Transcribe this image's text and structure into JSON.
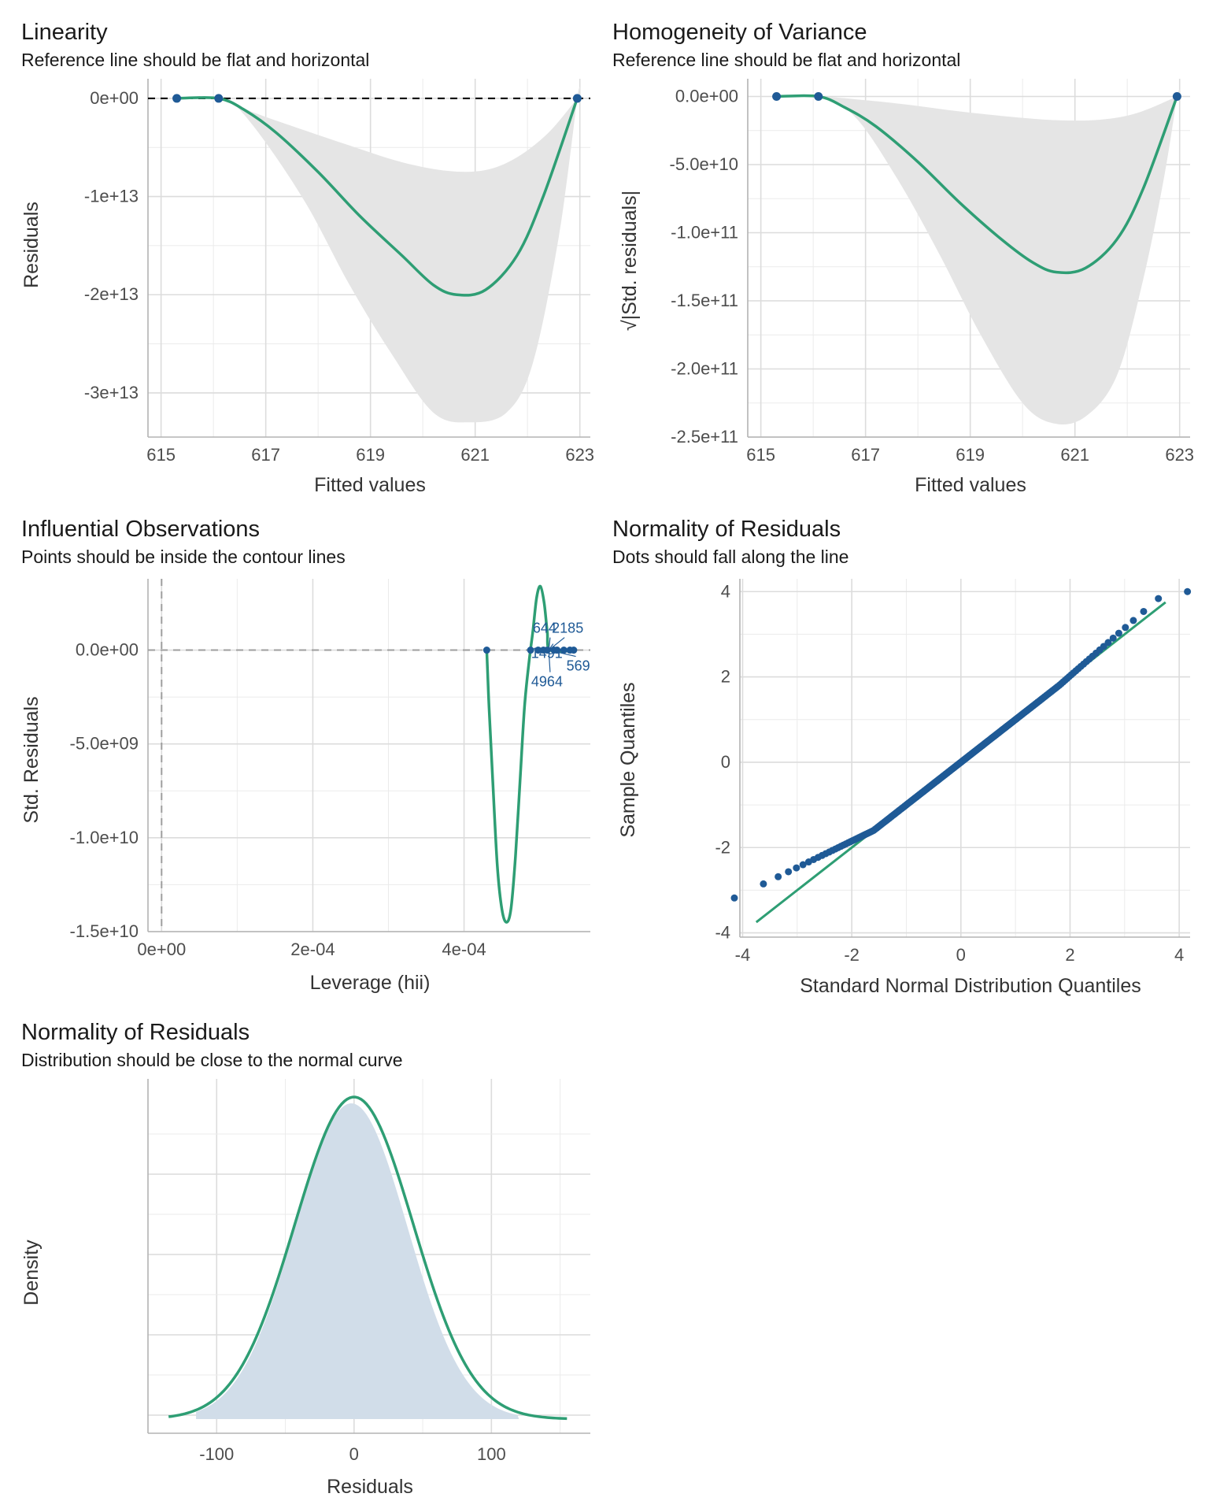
{
  "colors": {
    "line": "#2e9e74",
    "points": "#1f5a96",
    "band": "#e5e5e5",
    "grid": "#dcdcdc",
    "axis": "#b3b3b3",
    "density_fill": "#d1dde9",
    "text": "#1a1a1a",
    "tick": "#4d4d4d"
  },
  "chart_data": [
    {
      "id": "linearity",
      "type": "scatter",
      "title": "Linearity",
      "subtitle": "Reference line should be flat and horizontal",
      "xlabel": "Fitted values",
      "ylabel": "Residuals",
      "xlim": [
        614.75,
        623.2
      ],
      "ylim": [
        -34500000000000.0,
        2000000000000.0
      ],
      "xticks": [
        615,
        617,
        619,
        621,
        623
      ],
      "xtick_labels": [
        "615",
        "617",
        "619",
        "621",
        "623"
      ],
      "yticks": [
        0,
        -10000000000000.0,
        -20000000000000.0,
        -30000000000000.0
      ],
      "ytick_labels": [
        "0e+00",
        "-1e+13",
        "-2e+13",
        "-3e+13"
      ],
      "reference_line": 0,
      "points": [
        [
          615.3,
          0
        ],
        [
          616.1,
          0
        ],
        [
          622.95,
          0
        ]
      ],
      "smooth": [
        [
          615.3,
          0
        ],
        [
          616.1,
          0
        ],
        [
          616.6,
          -1200000000000.0
        ],
        [
          617.2,
          -3500000000000.0
        ],
        [
          618.0,
          -7500000000000.0
        ],
        [
          618.8,
          -12000000000000.0
        ],
        [
          619.6,
          -16000000000000.0
        ],
        [
          620.2,
          -19000000000000.0
        ],
        [
          620.65,
          -20000000000000.0
        ],
        [
          621.2,
          -19500000000000.0
        ],
        [
          621.8,
          -16000000000000.0
        ],
        [
          622.3,
          -10000000000000.0
        ],
        [
          622.95,
          0
        ]
      ],
      "band_upper": [
        [
          615.3,
          0
        ],
        [
          616.1,
          0
        ],
        [
          616.8,
          -1500000000000.0
        ],
        [
          617.6,
          -3000000000000.0
        ],
        [
          618.6,
          -4800000000000.0
        ],
        [
          619.6,
          -6500000000000.0
        ],
        [
          620.5,
          -7400000000000.0
        ],
        [
          621.2,
          -7300000000000.0
        ],
        [
          621.8,
          -6000000000000.0
        ],
        [
          622.4,
          -3500000000000.0
        ],
        [
          622.95,
          0
        ]
      ],
      "band_lower": [
        [
          622.95,
          0
        ],
        [
          622.6,
          -14000000000000.0
        ],
        [
          622.1,
          -27000000000000.0
        ],
        [
          621.6,
          -32000000000000.0
        ],
        [
          620.9,
          -33000000000000.0
        ],
        [
          620.2,
          -32000000000000.0
        ],
        [
          619.4,
          -26000000000000.0
        ],
        [
          618.6,
          -19000000000000.0
        ],
        [
          617.8,
          -11000000000000.0
        ],
        [
          617.0,
          -4500000000000.0
        ],
        [
          616.4,
          -600000000000.0
        ],
        [
          616.1,
          0
        ],
        [
          615.3,
          0
        ]
      ]
    },
    {
      "id": "homogeneity",
      "type": "scatter",
      "title": "Homogeneity of Variance",
      "subtitle": "Reference line should be flat and horizontal",
      "xlabel": "Fitted values",
      "ylabel": "√|Std. residuals|",
      "xlim": [
        614.75,
        623.2
      ],
      "ylim": [
        -250000000000.0,
        13000000000.0
      ],
      "xticks": [
        615,
        617,
        619,
        621,
        623
      ],
      "xtick_labels": [
        "615",
        "617",
        "619",
        "621",
        "623"
      ],
      "yticks": [
        0,
        -50000000000.0,
        -100000000000.0,
        -150000000000.0,
        -200000000000.0,
        -250000000000.0
      ],
      "ytick_labels": [
        "0.0e+00",
        "-5.0e+10",
        "-1.0e+11",
        "-1.5e+11",
        "-2.0e+11",
        "-2.5e+11"
      ],
      "points": [
        [
          615.3,
          0
        ],
        [
          616.1,
          0
        ],
        [
          622.95,
          0
        ]
      ],
      "smooth": [
        [
          615.3,
          0
        ],
        [
          616.1,
          0
        ],
        [
          616.6,
          -8000000000.0
        ],
        [
          617.2,
          -22000000000.0
        ],
        [
          618.0,
          -48000000000.0
        ],
        [
          618.8,
          -78000000000.0
        ],
        [
          619.6,
          -105000000000.0
        ],
        [
          620.2,
          -122000000000.0
        ],
        [
          620.65,
          -129000000000.0
        ],
        [
          621.2,
          -126000000000.0
        ],
        [
          621.8,
          -105000000000.0
        ],
        [
          622.3,
          -68000000000.0
        ],
        [
          622.95,
          0
        ]
      ],
      "band_upper": [
        [
          615.3,
          0
        ],
        [
          616.1,
          0
        ],
        [
          616.8,
          -2000000000.0
        ],
        [
          617.8,
          -6000000000.0
        ],
        [
          618.8,
          -11000000000.0
        ],
        [
          619.8,
          -15000000000.0
        ],
        [
          620.7,
          -17500000000.0
        ],
        [
          621.5,
          -17000000000.0
        ],
        [
          622.2,
          -12000000000.0
        ],
        [
          622.95,
          0
        ]
      ],
      "band_lower": [
        [
          622.95,
          0
        ],
        [
          622.7,
          -60000000000.0
        ],
        [
          622.3,
          -135000000000.0
        ],
        [
          621.8,
          -205000000000.0
        ],
        [
          621.2,
          -235000000000.0
        ],
        [
          620.6,
          -240000000000.0
        ],
        [
          620.0,
          -225000000000.0
        ],
        [
          619.2,
          -175000000000.0
        ],
        [
          618.4,
          -115000000000.0
        ],
        [
          617.6,
          -60000000000.0
        ],
        [
          616.8,
          -15000000000.0
        ],
        [
          616.1,
          0
        ],
        [
          615.3,
          0
        ]
      ]
    },
    {
      "id": "influential",
      "type": "scatter",
      "title": "Influential Observations",
      "subtitle": "Points should be inside the contour lines",
      "xlabel": "Leverage (hii)",
      "ylabel": "Std. Residuals",
      "xlim": [
        -1.8e-05,
        0.000567
      ],
      "ylim": [
        -15000000000.0,
        3800000000.0
      ],
      "xticks": [
        0,
        0.0002,
        0.0004
      ],
      "xtick_labels": [
        "0e+00",
        "2e-04",
        "4e-04"
      ],
      "yticks": [
        0,
        -5000000000.0,
        -10000000000.0,
        -15000000000.0
      ],
      "ytick_labels": [
        "0.0e+00",
        "-5.0e+09",
        "-1.0e+10",
        "-1.5e+10"
      ],
      "points": [
        [
          0.00043,
          0
        ],
        [
          0.000488,
          0
        ],
        [
          0.000498,
          0
        ],
        [
          0.000505,
          0
        ],
        [
          0.00051,
          0
        ],
        [
          0.000519,
          0
        ],
        [
          0.000523,
          0
        ],
        [
          0.000532,
          0
        ],
        [
          0.00054,
          0
        ],
        [
          0.000545,
          0
        ]
      ],
      "smooth": [
        [
          0.00043,
          0
        ],
        [
          0.000433,
          -3000000000.0
        ],
        [
          0.000438,
          -7000000000.0
        ],
        [
          0.000444,
          -11500000000.0
        ],
        [
          0.00045,
          -13800000000.0
        ],
        [
          0.000456,
          -14500000000.0
        ],
        [
          0.000462,
          -13800000000.0
        ],
        [
          0.000468,
          -11000000000.0
        ],
        [
          0.000474,
          -7000000000.0
        ],
        [
          0.00048,
          -3000000000.0
        ],
        [
          0.000486,
          -600000000.0
        ],
        [
          0.000491,
          1000000000.0
        ],
        [
          0.000496,
          2800000000.0
        ],
        [
          0.000501,
          3400000000.0
        ],
        [
          0.000506,
          2500000000.0
        ],
        [
          0.00051,
          1000000000.0
        ],
        [
          0.000514,
          0
        ],
        [
          0.000545,
          0
        ]
      ],
      "labels": [
        {
          "text": "644",
          "x": 0.000493,
          "y": 800000000.0
        },
        {
          "text": "2185",
          "x": 0.000512,
          "y": 800000000.0
        },
        {
          "text": "1491",
          "x": 0.000497,
          "y": 0
        },
        {
          "text": "569",
          "x": 0.000527,
          "y": -1000000000.0
        },
        {
          "text": "4964",
          "x": 0.000493,
          "y": -2000000000.0
        }
      ]
    },
    {
      "id": "qq",
      "type": "scatter",
      "title": "Normality of Residuals",
      "subtitle": "Dots should fall along the line",
      "xlabel": "Standard Normal Distribution Quantiles",
      "ylabel": "Sample Quantiles",
      "xlim": [
        -4.05,
        4.2
      ],
      "ylim": [
        -4.1,
        4.3
      ],
      "xticks": [
        -4,
        -2,
        0,
        2,
        4
      ],
      "xtick_labels": [
        "-4",
        "-2",
        "0",
        "2",
        "4"
      ],
      "yticks": [
        4,
        2,
        0,
        -2,
        -4
      ],
      "ytick_labels": [
        "4",
        "2",
        "0",
        "-2",
        "-4"
      ],
      "reference_line": [
        [
          -3.75,
          -3.75
        ],
        [
          3.75,
          3.75
        ]
      ]
    },
    {
      "id": "density",
      "type": "area",
      "title": "Normality of Residuals",
      "subtitle": "Distribution should be close to the normal curve",
      "xlabel": "Residuals",
      "ylabel": "Density",
      "xlim": [
        -150,
        172
      ],
      "xticks": [
        -100,
        0,
        100
      ],
      "xtick_labels": [
        "-100",
        "0",
        "100"
      ],
      "normal_mean": 0,
      "normal_sd": 43,
      "curve_xrange": [
        -135,
        155
      ]
    }
  ]
}
